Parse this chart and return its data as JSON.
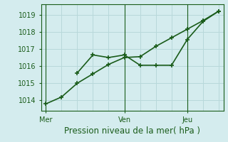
{
  "xlabel": "Pression niveau de la mer( hPa )",
  "bg_color": "#d4ecee",
  "grid_color": "#b8d8da",
  "line_color": "#1a5c1a",
  "line1_x": [
    0,
    1,
    2,
    3,
    4,
    5,
    6,
    7,
    8,
    9,
    10,
    11
  ],
  "line1_y": [
    1013.8,
    1014.2,
    1015.0,
    1015.55,
    1016.1,
    1016.5,
    1016.55,
    1017.15,
    1017.65,
    1018.15,
    1018.65,
    1019.2
  ],
  "line2_x": [
    2,
    3,
    4,
    5,
    6,
    7,
    8,
    9,
    10,
    11
  ],
  "line2_y": [
    1015.6,
    1016.65,
    1016.5,
    1016.65,
    1016.05,
    1016.05,
    1016.05,
    1017.55,
    1018.6,
    1019.2
  ],
  "xtick_positions": [
    0,
    5,
    9
  ],
  "xtick_labels": [
    "Mer",
    "Ven",
    "Jeu"
  ],
  "ytick_positions": [
    1014,
    1015,
    1016,
    1017,
    1018,
    1019
  ],
  "ylim": [
    1013.4,
    1019.6
  ],
  "xlim": [
    -0.3,
    11.3
  ],
  "vline_positions": [
    0,
    5,
    9
  ],
  "marker": "+",
  "markersize": 5,
  "linewidth": 1.2,
  "xlabel_fontsize": 8.5,
  "tick_fontsize": 7
}
